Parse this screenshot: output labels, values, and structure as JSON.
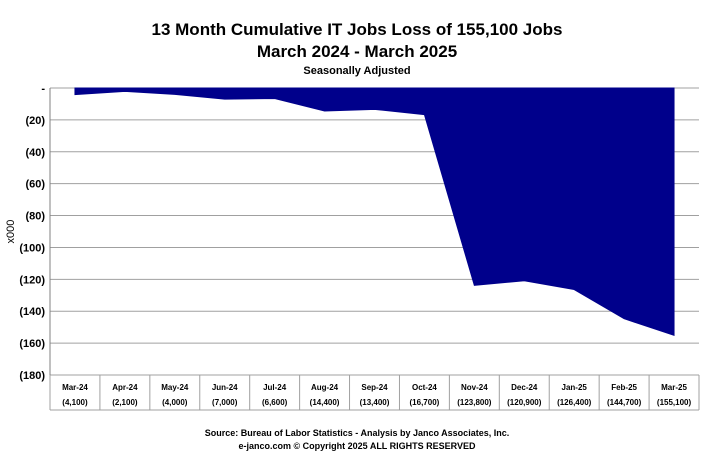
{
  "chart_data": {
    "type": "area",
    "title": "13 Month Cumulative IT Jobs Loss of 155,100 Jobs",
    "subtitle": "March 2024 - March 2025",
    "note": "Seasonally  Adjusted",
    "ylabel": "x000",
    "ylim": [
      -180,
      0
    ],
    "yticks": [
      {
        "value": 0,
        "label": "-"
      },
      {
        "value": -20,
        "label": "(20)"
      },
      {
        "value": -40,
        "label": "(40)"
      },
      {
        "value": -60,
        "label": "(60)"
      },
      {
        "value": -80,
        "label": "(80)"
      },
      {
        "value": -100,
        "label": "(100)"
      },
      {
        "value": -120,
        "label": "(120)"
      },
      {
        "value": -140,
        "label": "(140)"
      },
      {
        "value": -160,
        "label": "(160)"
      },
      {
        "value": -180,
        "label": "(180)"
      }
    ],
    "categories": [
      "Mar-24",
      "Apr-24",
      "May-24",
      "Jun-24",
      "Jul-24",
      "Aug-24",
      "Sep-24",
      "Oct-24",
      "Nov-24",
      "Dec-24",
      "Jan-25",
      "Feb-25",
      "Mar-25"
    ],
    "category_values": [
      "(4,100)",
      "(2,100)",
      "(4,000)",
      "(7,000)",
      "(6,600)",
      "(14,400)",
      "(13,400)",
      "(16,700)",
      "(123,800)",
      "(120,900)",
      "(126,400)",
      "(144,700)",
      "(155,100)"
    ],
    "values": [
      -4.1,
      -2.1,
      -4.0,
      -7.0,
      -6.6,
      -14.4,
      -13.4,
      -16.7,
      -123.8,
      -120.9,
      -126.4,
      -144.7,
      -155.1
    ],
    "grid": true,
    "colors": {
      "fill": "#00008b",
      "grid": "#a0a0a0",
      "plot_bg": "#ffffff"
    }
  },
  "source_line1": "Source: Bureau of Labor Statistics - Analysis by Janco Associates, Inc.",
  "source_line2": "e-janco.com © Copyright 2025  ALL RIGHTS RESERVED"
}
